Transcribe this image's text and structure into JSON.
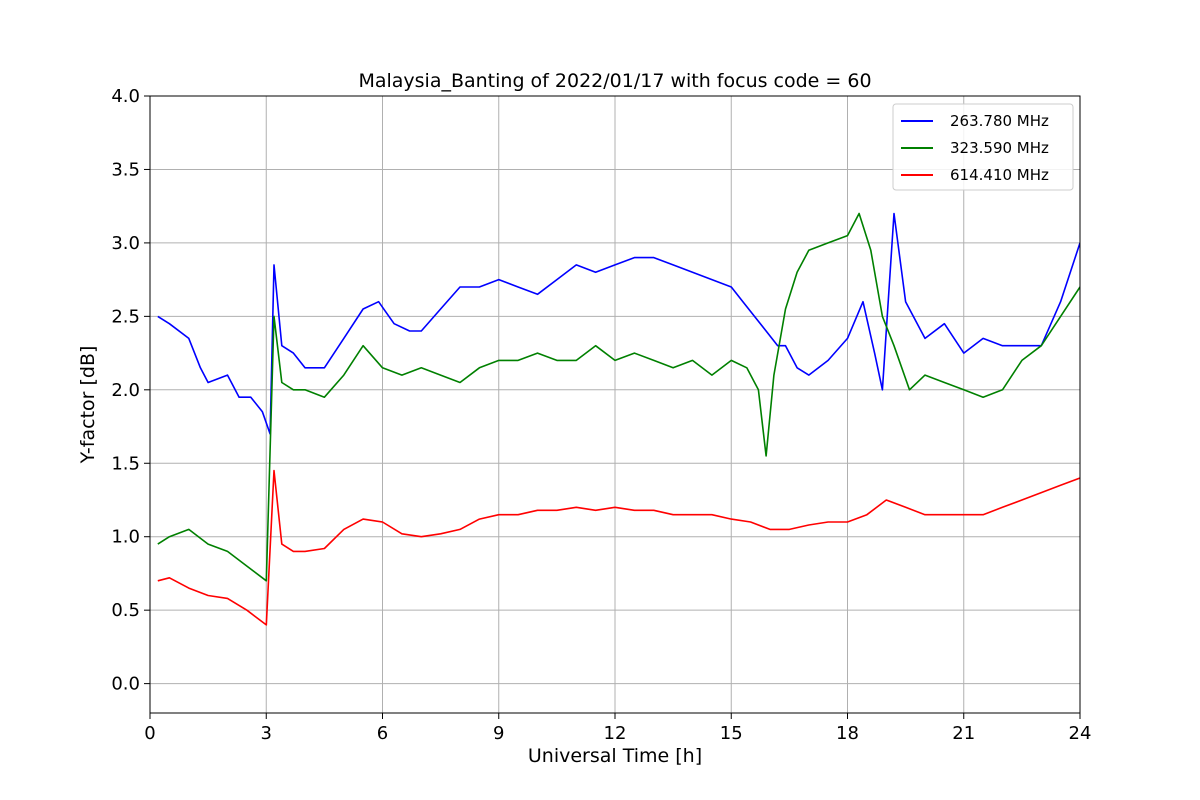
{
  "chart_data": {
    "type": "line",
    "title": "Malaysia_Banting of 2022/01/17 with focus code = 60",
    "xlabel": "Universal Time [h]",
    "ylabel": "Y-factor [dB]",
    "xlim": [
      0,
      24
    ],
    "ylim": [
      -0.2,
      4.0
    ],
    "xticks": [
      0,
      3,
      6,
      9,
      12,
      15,
      18,
      21,
      24
    ],
    "yticks": [
      0.0,
      0.5,
      1.0,
      1.5,
      2.0,
      2.5,
      3.0,
      3.5,
      4.0
    ],
    "grid": true,
    "legend_position": "top-right",
    "series": [
      {
        "name": "263.780 MHz",
        "color": "#0000ff",
        "x": [
          0.2,
          0.5,
          1.0,
          1.3,
          1.5,
          2.0,
          2.3,
          2.6,
          2.9,
          3.1,
          3.2,
          3.4,
          3.7,
          4.0,
          4.5,
          5.0,
          5.5,
          5.9,
          6.3,
          6.7,
          7.0,
          7.5,
          8.0,
          8.5,
          9.0,
          9.5,
          10.0,
          10.5,
          11.0,
          11.5,
          12.0,
          12.5,
          13.0,
          13.5,
          14.0,
          14.5,
          15.0,
          15.3,
          15.6,
          15.9,
          16.2,
          16.4,
          16.7,
          17.0,
          17.5,
          18.0,
          18.4,
          18.7,
          18.9,
          19.2,
          19.5,
          20.0,
          20.5,
          21.0,
          21.5,
          22.0,
          22.5,
          23.0,
          23.5,
          24.0
        ],
        "y": [
          2.5,
          2.45,
          2.35,
          2.15,
          2.05,
          2.1,
          1.95,
          1.95,
          1.85,
          1.7,
          2.85,
          2.3,
          2.25,
          2.15,
          2.15,
          2.35,
          2.55,
          2.6,
          2.45,
          2.4,
          2.4,
          2.55,
          2.7,
          2.7,
          2.75,
          2.7,
          2.65,
          2.75,
          2.85,
          2.8,
          2.85,
          2.9,
          2.9,
          2.85,
          2.8,
          2.75,
          2.7,
          2.6,
          2.5,
          2.4,
          2.3,
          2.3,
          2.15,
          2.1,
          2.2,
          2.35,
          2.6,
          2.25,
          2.0,
          3.2,
          2.6,
          2.35,
          2.45,
          2.25,
          2.35,
          2.3,
          2.3,
          2.3,
          2.6,
          3.0
        ]
      },
      {
        "name": "323.590 MHz",
        "color": "#008000",
        "x": [
          0.2,
          0.5,
          1.0,
          1.5,
          2.0,
          2.5,
          3.0,
          3.2,
          3.4,
          3.7,
          4.0,
          4.5,
          5.0,
          5.5,
          6.0,
          6.5,
          7.0,
          7.5,
          8.0,
          8.5,
          9.0,
          9.5,
          10.0,
          10.5,
          11.0,
          11.5,
          12.0,
          12.5,
          13.0,
          13.5,
          14.0,
          14.5,
          15.0,
          15.4,
          15.7,
          15.9,
          16.1,
          16.4,
          16.7,
          17.0,
          17.5,
          18.0,
          18.3,
          18.6,
          18.9,
          19.2,
          19.6,
          20.0,
          20.5,
          21.0,
          21.5,
          22.0,
          22.5,
          23.0,
          23.5,
          24.0
        ],
        "y": [
          0.95,
          1.0,
          1.05,
          0.95,
          0.9,
          0.8,
          0.7,
          2.5,
          2.05,
          2.0,
          2.0,
          1.95,
          2.1,
          2.3,
          2.15,
          2.1,
          2.15,
          2.1,
          2.05,
          2.15,
          2.2,
          2.2,
          2.25,
          2.2,
          2.2,
          2.3,
          2.2,
          2.25,
          2.2,
          2.15,
          2.2,
          2.1,
          2.2,
          2.15,
          2.0,
          1.55,
          2.1,
          2.55,
          2.8,
          2.95,
          3.0,
          3.05,
          3.2,
          2.95,
          2.5,
          2.3,
          2.0,
          2.1,
          2.05,
          2.0,
          1.95,
          2.0,
          2.2,
          2.3,
          2.5,
          2.7
        ]
      },
      {
        "name": "614.410 MHz",
        "color": "#ff0000",
        "x": [
          0.2,
          0.5,
          1.0,
          1.5,
          2.0,
          2.5,
          3.0,
          3.2,
          3.4,
          3.7,
          4.0,
          4.5,
          5.0,
          5.5,
          6.0,
          6.5,
          7.0,
          7.5,
          8.0,
          8.5,
          9.0,
          9.5,
          10.0,
          10.5,
          11.0,
          11.5,
          12.0,
          12.5,
          13.0,
          13.5,
          14.0,
          14.5,
          15.0,
          15.5,
          16.0,
          16.5,
          17.0,
          17.5,
          18.0,
          18.5,
          19.0,
          19.5,
          20.0,
          20.5,
          21.0,
          21.5,
          22.0,
          22.5,
          23.0,
          23.5,
          24.0
        ],
        "y": [
          0.7,
          0.72,
          0.65,
          0.6,
          0.58,
          0.5,
          0.4,
          1.45,
          0.95,
          0.9,
          0.9,
          0.92,
          1.05,
          1.12,
          1.1,
          1.02,
          1.0,
          1.02,
          1.05,
          1.12,
          1.15,
          1.15,
          1.18,
          1.18,
          1.2,
          1.18,
          1.2,
          1.18,
          1.18,
          1.15,
          1.15,
          1.15,
          1.12,
          1.1,
          1.05,
          1.05,
          1.08,
          1.1,
          1.1,
          1.15,
          1.25,
          1.2,
          1.15,
          1.15,
          1.15,
          1.15,
          1.2,
          1.25,
          1.3,
          1.35,
          1.4
        ]
      }
    ],
    "legend": [
      "263.780 MHz",
      "323.590 MHz",
      "614.410 MHz"
    ]
  }
}
